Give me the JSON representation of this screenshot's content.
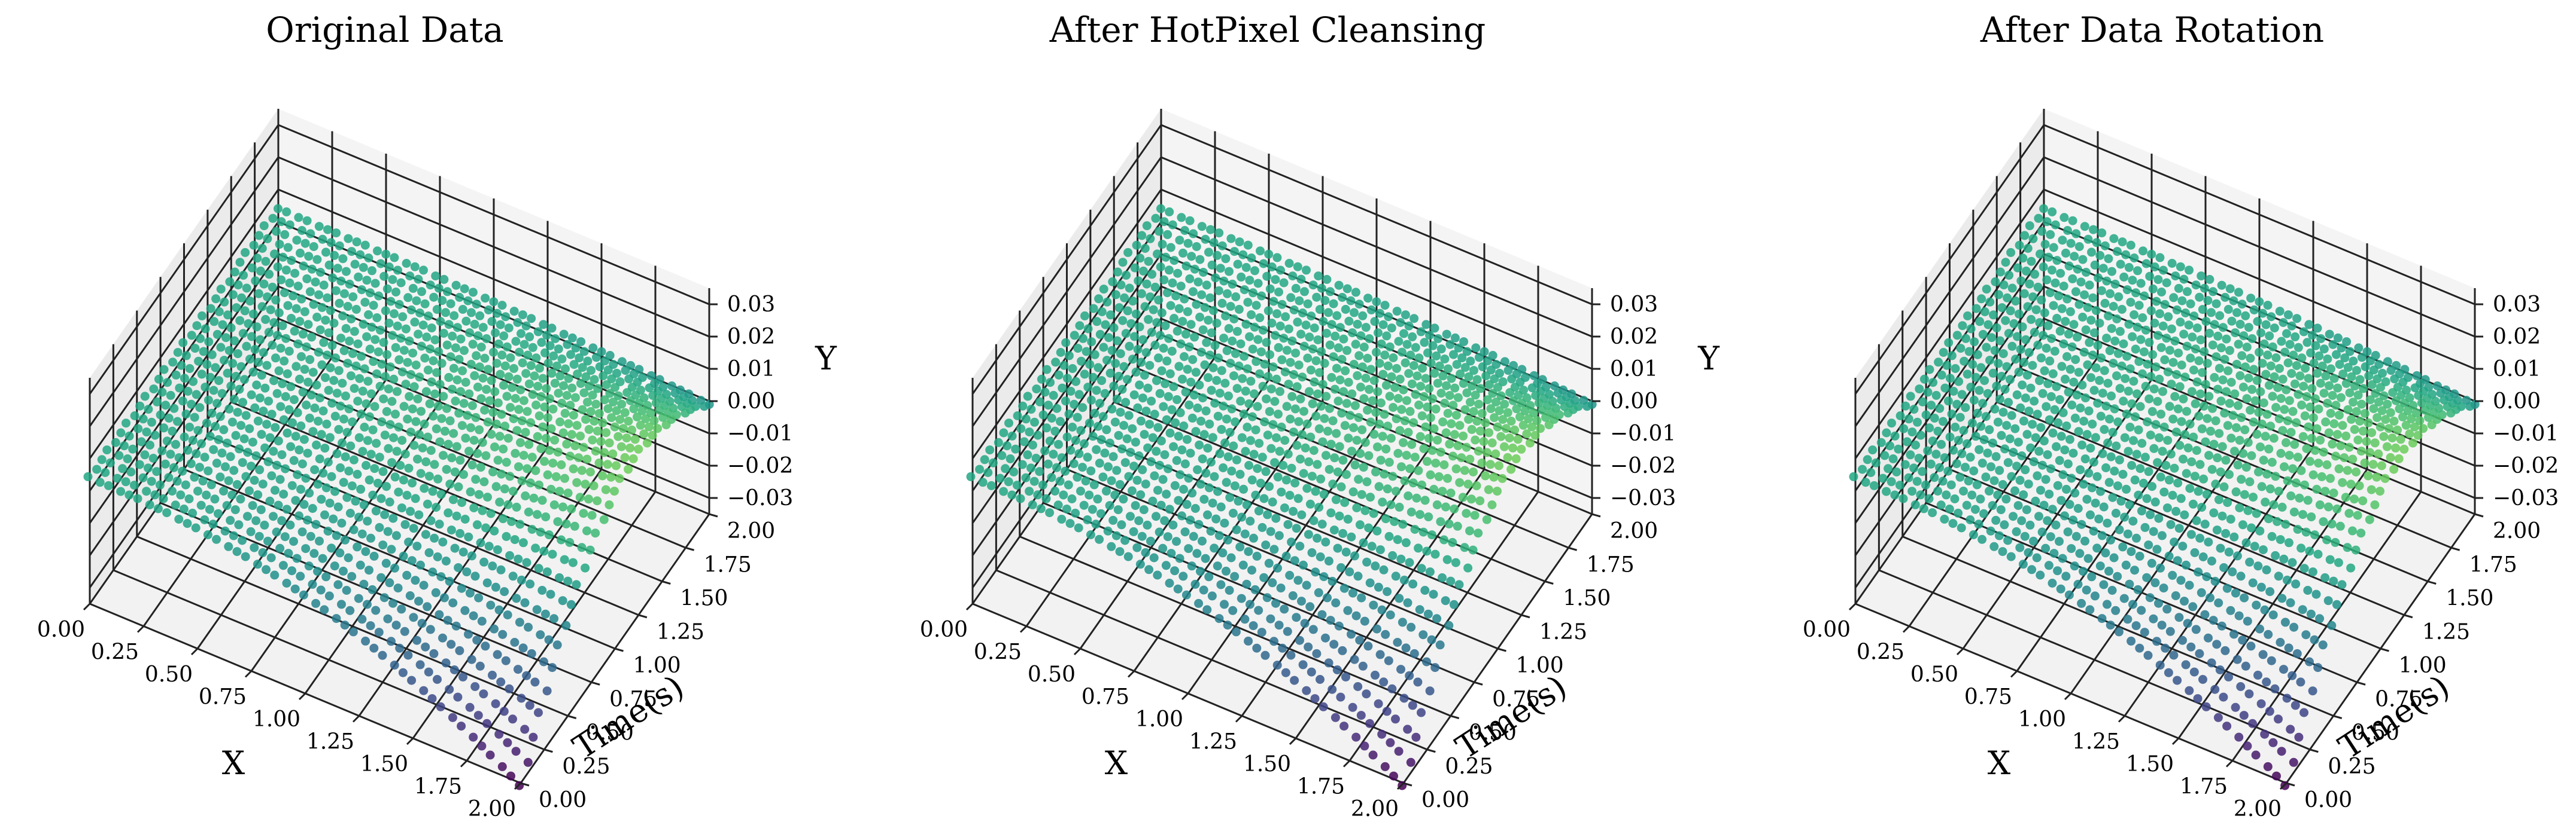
{
  "chart_data": [
    {
      "type": "scatter3d",
      "title": "Original Data",
      "xlabel": "X",
      "ylabel": "Time(s)",
      "zlabel": "Y",
      "xlim": [
        0,
        2
      ],
      "ylim": [
        0,
        2
      ],
      "zlim": [
        -0.035,
        0.035
      ],
      "x_ticks": [
        "0.00",
        "0.25",
        "0.50",
        "0.75",
        "1.00",
        "1.25",
        "1.50",
        "1.75",
        "2.00"
      ],
      "y_ticks": [
        "0.00",
        "0.25",
        "0.50",
        "0.75",
        "1.00",
        "1.25",
        "1.50",
        "1.75",
        "2.00"
      ],
      "z_ticks": [
        "0.03",
        "0.02",
        "0.01",
        "0.00",
        "−0.01",
        "−0.02",
        "−0.03"
      ],
      "colormap": "viridis",
      "grid": true
    },
    {
      "type": "scatter3d",
      "title": "After HotPixel Cleansing",
      "xlabel": "X",
      "ylabel": "Time(s)",
      "zlabel": "Y",
      "xlim": [
        0,
        2
      ],
      "ylim": [
        0,
        2
      ],
      "zlim": [
        -0.035,
        0.035
      ],
      "x_ticks": [
        "0.00",
        "0.25",
        "0.50",
        "0.75",
        "1.00",
        "1.25",
        "1.50",
        "1.75",
        "2.00"
      ],
      "y_ticks": [
        "0.00",
        "0.25",
        "0.50",
        "0.75",
        "1.00",
        "1.25",
        "1.50",
        "1.75",
        "2.00"
      ],
      "z_ticks": [
        "0.03",
        "0.02",
        "0.01",
        "0.00",
        "−0.01",
        "−0.02",
        "−0.03"
      ],
      "colormap": "viridis",
      "grid": true
    },
    {
      "type": "scatter3d",
      "title": "After Data Rotation",
      "xlabel": "X",
      "ylabel": "Time(s)",
      "zlabel": "Y",
      "xlim": [
        0,
        2
      ],
      "ylim": [
        0,
        2
      ],
      "zlim": [
        -0.035,
        0.035
      ],
      "x_ticks": [
        "0.00",
        "0.25",
        "0.50",
        "0.75",
        "1.00",
        "1.25",
        "1.50",
        "1.75",
        "2.00"
      ],
      "y_ticks": [
        "0.00",
        "0.25",
        "0.50",
        "0.75",
        "1.00",
        "1.25",
        "1.50",
        "1.75",
        "2.00"
      ],
      "z_ticks": [
        "0.03",
        "0.02",
        "0.01",
        "0.00",
        "−0.01",
        "−0.02",
        "−0.03"
      ],
      "colormap": "viridis",
      "grid": true
    }
  ]
}
